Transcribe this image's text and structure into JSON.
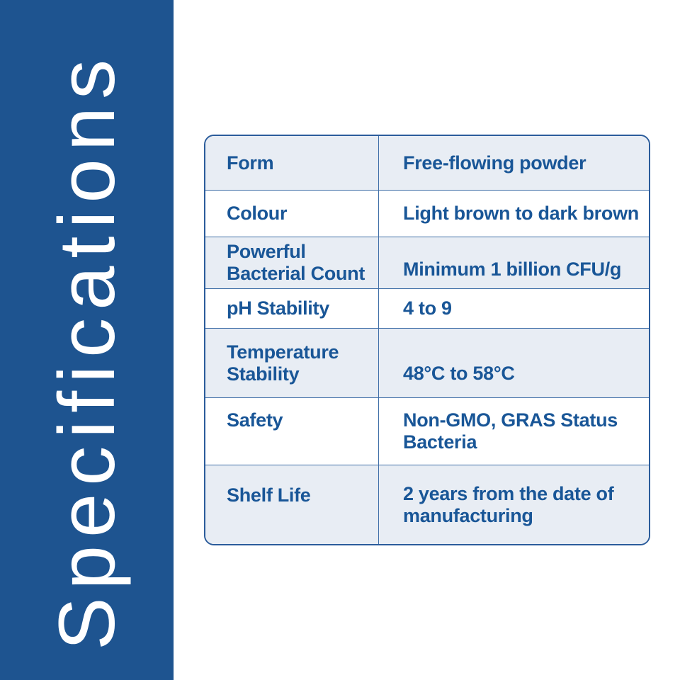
{
  "banner": {
    "title": "Specifications",
    "bg_color": "#1e5490",
    "text_color": "#ffffff"
  },
  "table": {
    "colors": {
      "row_alt_fill": "#e8edf4",
      "outer_border": "#2b5c9b",
      "divider": "#3f6ea7",
      "text": "#195697"
    },
    "rows": [
      {
        "label": "Form",
        "value": "Free-flowing powder",
        "label_lines": [
          "Form"
        ],
        "value_lines": [
          "Free-flowing powder"
        ]
      },
      {
        "label": "Colour",
        "value": "Light brown to dark brown",
        "label_lines": [
          "Colour"
        ],
        "value_lines": [
          "Light brown to dark brown"
        ]
      },
      {
        "label": "Powerful Bacterial Count",
        "value": "Minimum 1 billion CFU/g",
        "label_lines": [
          "Powerful",
          "Bacterial Count"
        ],
        "value_lines": [
          "Minimum 1 billion CFU/g"
        ]
      },
      {
        "label": "pH Stability",
        "value": "4 to 9",
        "label_lines": [
          "pH Stability"
        ],
        "value_lines": [
          "4 to 9"
        ]
      },
      {
        "label": "Temperature Stability",
        "value": "48°C to 58°C",
        "label_lines": [
          "Temperature",
          "Stability"
        ],
        "value_lines": [
          "48°C to 58°C"
        ]
      },
      {
        "label": "Safety",
        "value": "Non-GMO, GRAS Status Bacteria",
        "label_lines": [
          "Safety"
        ],
        "value_lines": [
          "Non-GMO, GRAS Status",
          "Bacteria"
        ]
      },
      {
        "label": "Shelf Life",
        "value": "2 years from the date of manufacturing",
        "label_lines": [
          "Shelf Life"
        ],
        "value_lines": [
          "2 years from the date of",
          "manufacturing"
        ]
      }
    ]
  }
}
